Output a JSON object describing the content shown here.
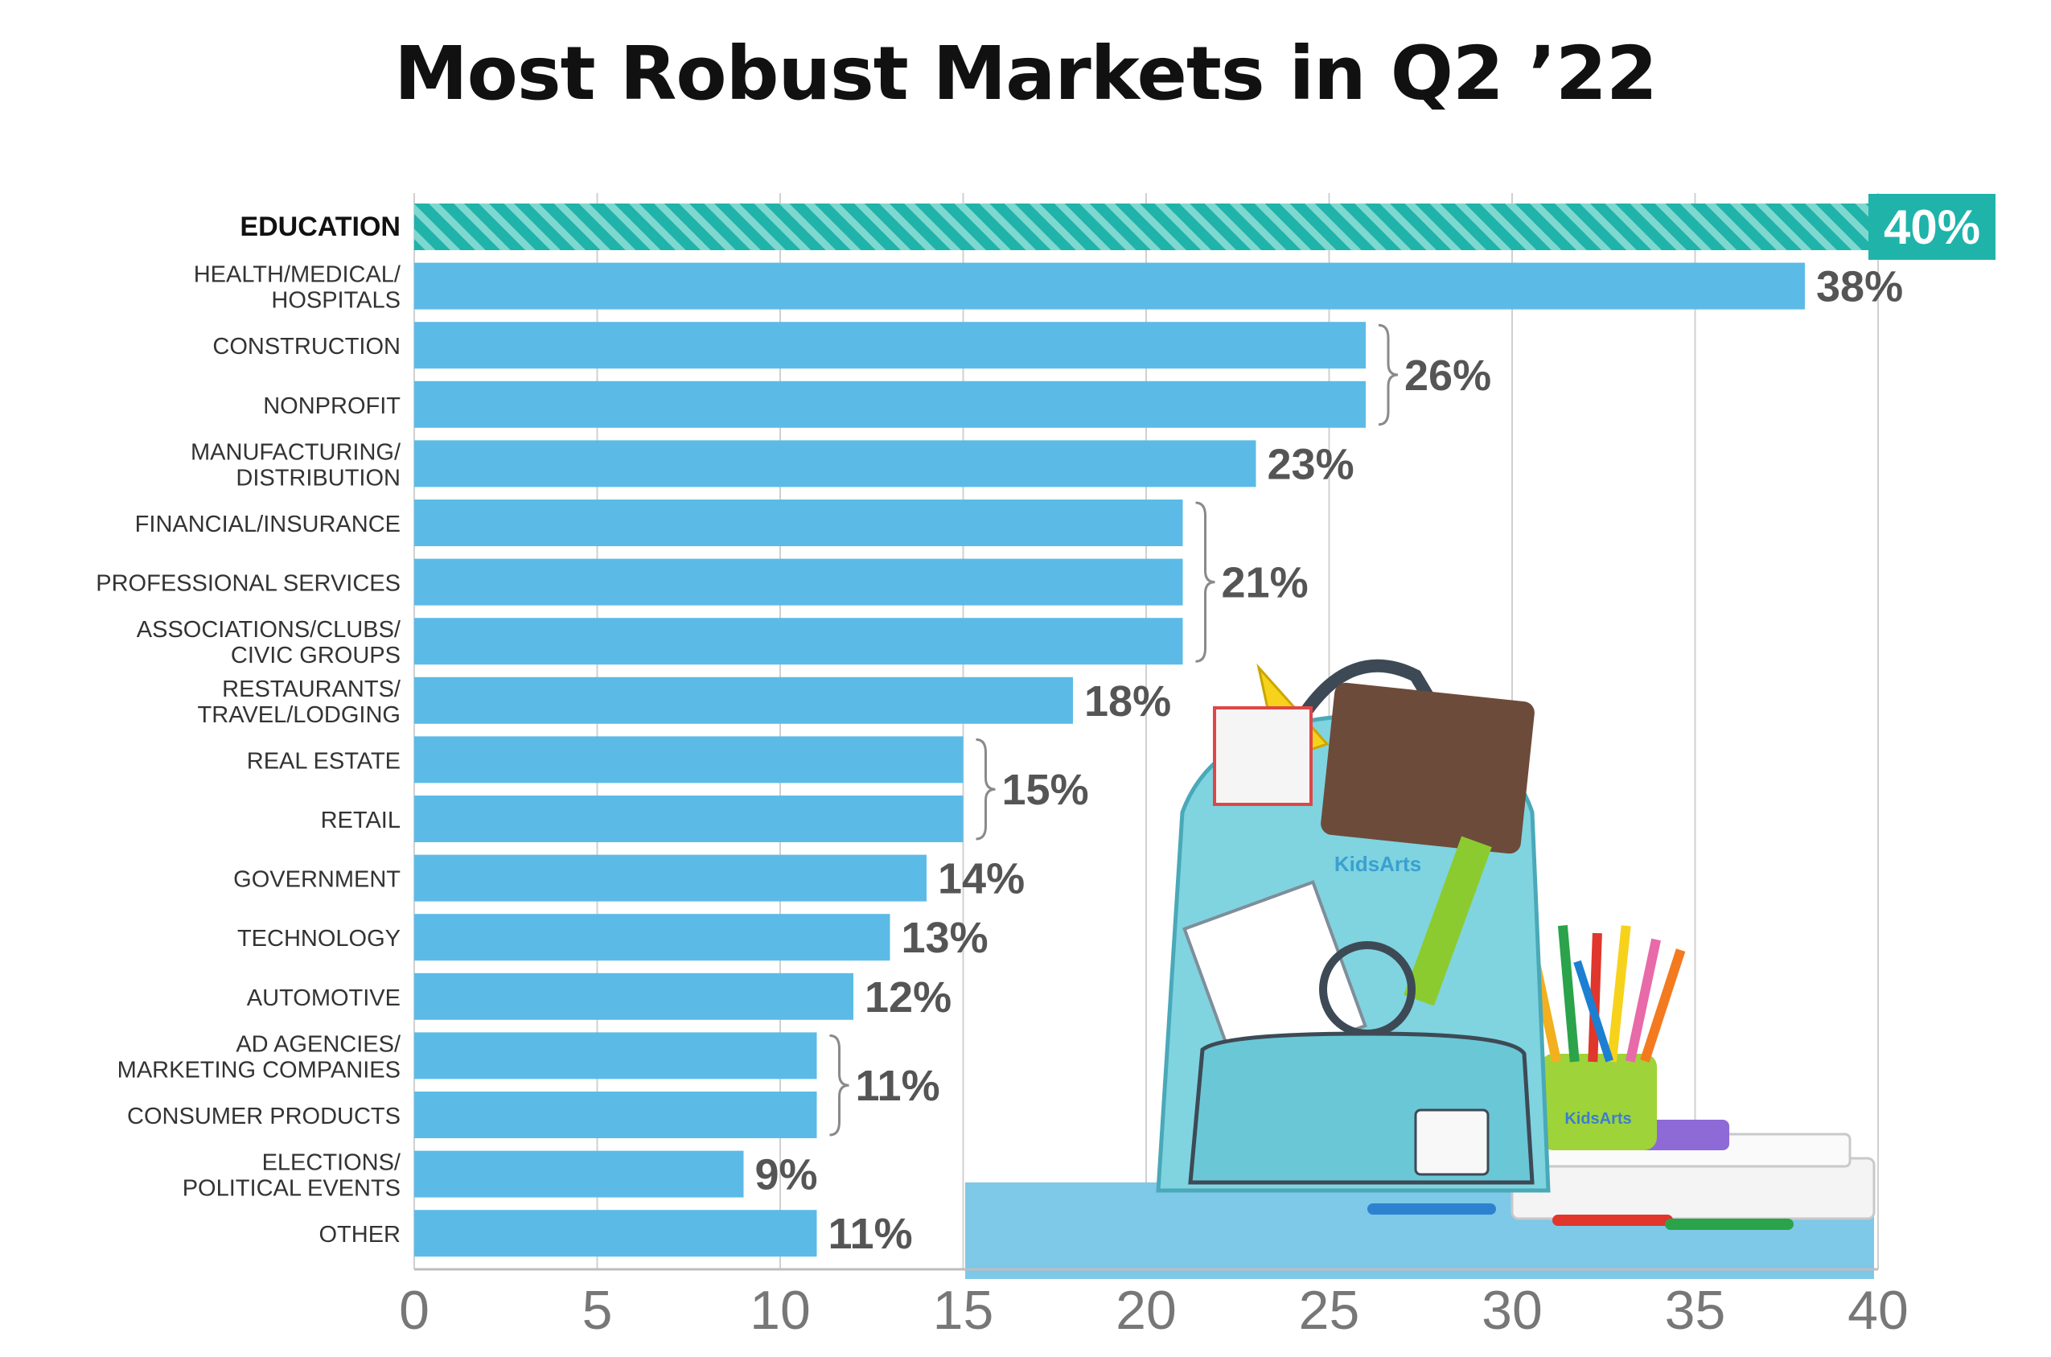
{
  "title": "Most Robust Markets in Q2 ’22",
  "colors": {
    "bar": "#5bbbe6",
    "highlight": "#1fb3aa",
    "highlight_stripe": "#7fd8d0",
    "label": "#333333",
    "value": "#555555",
    "grid": "#d0d0d0",
    "tick": "#777777"
  },
  "chart_data": {
    "type": "bar",
    "orientation": "horizontal",
    "title": "Most Robust Markets in Q2 ’22",
    "xlabel": "",
    "ylabel": "",
    "xlim": [
      0,
      40
    ],
    "x_ticks": [
      "0",
      "5",
      "10",
      "15",
      "20",
      "25",
      "30",
      "35",
      "40"
    ],
    "grid": "vertical",
    "highlight_category": "EDUCATION",
    "categories": [
      "EDUCATION",
      "HEALTH/MEDICAL/\nHOSPITALS",
      "CONSTRUCTION",
      "NONPROFIT",
      "MANUFACTURING/\nDISTRIBUTION",
      "FINANCIAL/INSURANCE",
      "PROFESSIONAL SERVICES",
      "ASSOCIATIONS/CLUBS/\nCIVIC GROUPS",
      "RESTAURANTS/\nTRAVEL/LODGING",
      "REAL ESTATE",
      "RETAIL",
      "GOVERNMENT",
      "TECHNOLOGY",
      "AUTOMOTIVE",
      "AD AGENCIES/\nMARKETING COMPANIES",
      "CONSUMER PRODUCTS",
      "ELECTIONS/\nPOLITICAL EVENTS",
      "OTHER"
    ],
    "values": [
      40,
      38,
      26,
      26,
      23,
      21,
      21,
      21,
      18,
      15,
      15,
      14,
      13,
      12,
      11,
      11,
      9,
      11
    ],
    "data_labels": [
      {
        "text": "40%",
        "bars": [
          0
        ]
      },
      {
        "text": "38%",
        "bars": [
          1
        ]
      },
      {
        "text": "26%",
        "bars": [
          2,
          3
        ]
      },
      {
        "text": "23%",
        "bars": [
          4
        ]
      },
      {
        "text": "21%",
        "bars": [
          5,
          6,
          7
        ]
      },
      {
        "text": "18%",
        "bars": [
          8
        ]
      },
      {
        "text": "15%",
        "bars": [
          9,
          10
        ]
      },
      {
        "text": "14%",
        "bars": [
          11
        ]
      },
      {
        "text": "13%",
        "bars": [
          12
        ]
      },
      {
        "text": "12%",
        "bars": [
          13
        ]
      },
      {
        "text": "11%",
        "bars": [
          14,
          15
        ]
      },
      {
        "text": "9%",
        "bars": [
          16
        ]
      },
      {
        "text": "11%",
        "bars": [
          17
        ]
      }
    ]
  },
  "illustration": {
    "type": "photo-collage",
    "subject": "backpack-with-school-supplies",
    "logo_text": "KidsArts"
  }
}
